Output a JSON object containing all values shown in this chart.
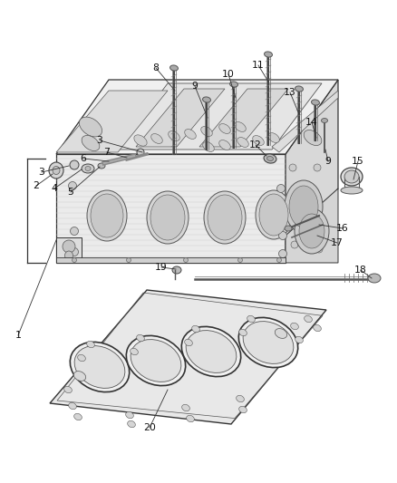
{
  "bg_color": "#ffffff",
  "fig_width": 4.38,
  "fig_height": 5.33,
  "dpi": 100,
  "label_color": "#111111",
  "line_color": "#333333"
}
